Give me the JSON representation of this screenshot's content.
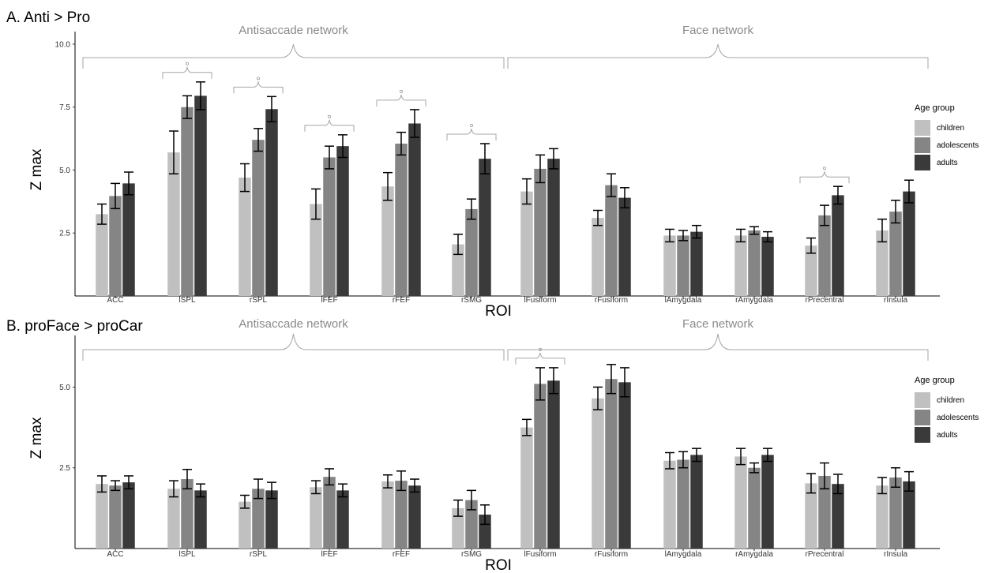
{
  "legend": {
    "title": "Age group",
    "entries": [
      "children",
      "adolescents",
      "adults"
    ],
    "colors": [
      "#c0c0c0",
      "#858585",
      "#3a3a3a"
    ],
    "placement": "right"
  },
  "colors": {
    "bracket": "#a6a6a6",
    "error_bar": "#000000",
    "axis": "#000000"
  },
  "chart_data": [
    {
      "type": "bar",
      "title": "A. Anti > Pro",
      "xlabel": "ROI",
      "ylabel": "Z max",
      "ylim": [
        0,
        10.5
      ],
      "yticks": [
        "2.5",
        "5.0",
        "7.5",
        "10.0"
      ],
      "categories": [
        "ACC",
        "lSPL",
        "rSPL",
        "lFEF",
        "rFEF",
        "rSMG",
        "lFusiform",
        "rFusiform",
        "lAmygdala",
        "rAmygdala",
        "rPrecentral",
        "rInsula"
      ],
      "groups": [
        {
          "label": "Antisaccade network",
          "from": 0,
          "to": 5
        },
        {
          "label": "Face network",
          "from": 6,
          "to": 11
        }
      ],
      "significance": [
        1,
        2,
        3,
        4,
        5,
        10
      ],
      "series": [
        {
          "name": "children",
          "values": [
            3.25,
            5.7,
            4.7,
            3.65,
            4.35,
            2.05,
            4.15,
            3.1,
            2.4,
            2.4,
            2.0,
            2.6
          ],
          "errors": [
            0.4,
            0.85,
            0.55,
            0.6,
            0.55,
            0.4,
            0.5,
            0.3,
            0.25,
            0.25,
            0.3,
            0.45
          ]
        },
        {
          "name": "adolescents",
          "values": [
            3.97,
            7.5,
            6.2,
            5.5,
            6.05,
            3.45,
            5.05,
            4.4,
            2.4,
            2.6,
            3.2,
            3.35
          ],
          "errors": [
            0.5,
            0.45,
            0.45,
            0.45,
            0.45,
            0.4,
            0.55,
            0.45,
            0.2,
            0.15,
            0.4,
            0.45
          ]
        },
        {
          "name": "adults",
          "values": [
            4.47,
            7.95,
            7.42,
            5.95,
            6.85,
            5.45,
            5.45,
            3.9,
            2.55,
            2.35,
            4.0,
            4.15
          ],
          "errors": [
            0.45,
            0.55,
            0.5,
            0.45,
            0.55,
            0.6,
            0.4,
            0.4,
            0.25,
            0.2,
            0.35,
            0.45
          ]
        }
      ]
    },
    {
      "type": "bar",
      "title": "B. proFace > proCar",
      "xlabel": "ROI",
      "ylabel": "Z max",
      "ylim": [
        0,
        6.6
      ],
      "yticks": [
        "2.5",
        "5.0"
      ],
      "categories": [
        "ACC",
        "lSPL",
        "rSPL",
        "lFEF",
        "rFEF",
        "rSMG",
        "lFusiform",
        "rFusiform",
        "lAmygdala",
        "rAmygdala",
        "rPrecentral",
        "rInsula"
      ],
      "groups": [
        {
          "label": "Antisaccade network",
          "from": 0,
          "to": 5
        },
        {
          "label": "Face network",
          "from": 6,
          "to": 11
        }
      ],
      "significance": [
        6
      ],
      "series": [
        {
          "name": "children",
          "values": [
            2.0,
            1.85,
            1.45,
            1.9,
            2.08,
            1.25,
            3.75,
            4.65,
            2.72,
            2.85,
            2.02,
            1.95
          ],
          "errors": [
            0.25,
            0.25,
            0.2,
            0.2,
            0.2,
            0.25,
            0.25,
            0.35,
            0.25,
            0.25,
            0.3,
            0.25
          ]
        },
        {
          "name": "adolescents",
          "values": [
            1.95,
            2.15,
            1.85,
            2.22,
            2.1,
            1.5,
            5.1,
            5.25,
            2.75,
            2.5,
            2.25,
            2.2
          ],
          "errors": [
            0.15,
            0.3,
            0.3,
            0.25,
            0.3,
            0.3,
            0.5,
            0.45,
            0.25,
            0.15,
            0.4,
            0.3
          ]
        },
        {
          "name": "adults",
          "values": [
            2.05,
            1.8,
            1.8,
            1.8,
            1.95,
            1.05,
            5.2,
            5.15,
            2.9,
            2.9,
            2.0,
            2.08
          ],
          "errors": [
            0.2,
            0.2,
            0.25,
            0.2,
            0.2,
            0.3,
            0.4,
            0.45,
            0.2,
            0.2,
            0.3,
            0.3
          ]
        }
      ]
    }
  ]
}
